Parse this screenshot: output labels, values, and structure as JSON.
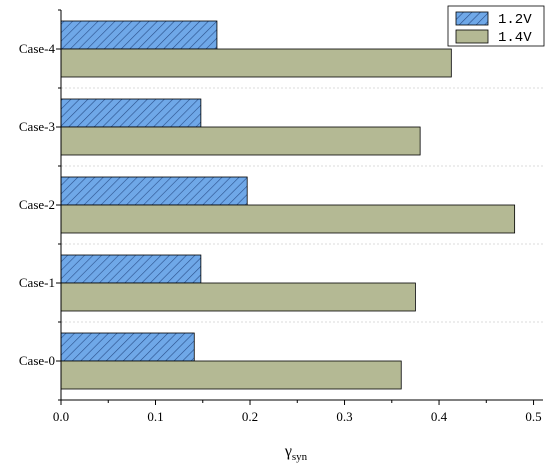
{
  "chart_data": {
    "type": "bar",
    "orientation": "horizontal",
    "categories": [
      "Case-0",
      "Case-1",
      "Case-2",
      "Case-3",
      "Case-4"
    ],
    "series": [
      {
        "name": "1.2V",
        "values": [
          0.141,
          0.148,
          0.197,
          0.148,
          0.165
        ],
        "color": "#6fa8e8",
        "pattern": "diagonal-hatch"
      },
      {
        "name": "1.4V",
        "values": [
          0.36,
          0.375,
          0.48,
          0.38,
          0.413
        ],
        "color": "#b4b994",
        "pattern": "solid"
      }
    ],
    "xlabel_main": "γ",
    "xlabel_sub": "syn",
    "ylabel": "",
    "xlim": [
      0,
      0.51
    ],
    "xticks": [
      0,
      0.1,
      0.2,
      0.3,
      0.4,
      0.5
    ],
    "xtick_labels": [
      "0.0",
      "0.1",
      "0.2",
      "0.3",
      "0.4",
      "0.5"
    ],
    "grid": true,
    "legend_position": "top-right"
  }
}
